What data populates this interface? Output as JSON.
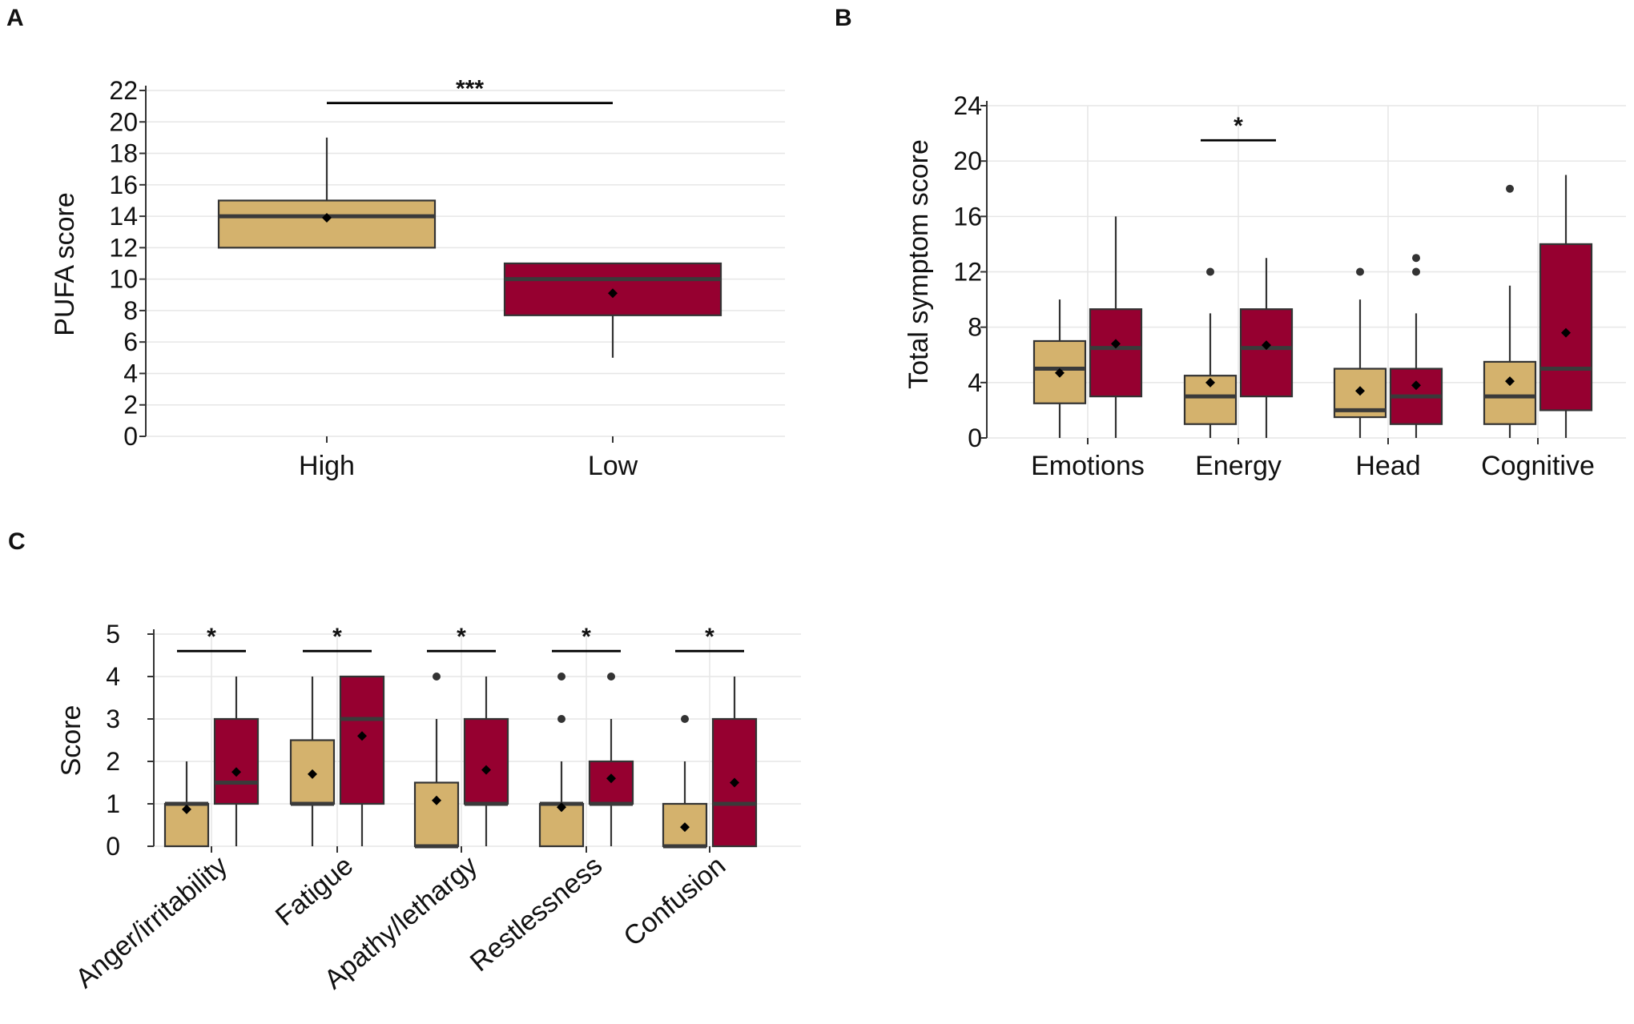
{
  "colors": {
    "high": "#d4b26d",
    "low": "#960030"
  },
  "chart_data": [
    {
      "type": "box",
      "panel": "A",
      "ylabel": "PUFA score",
      "ylim": [
        0,
        22
      ],
      "yticks": [
        0,
        2,
        4,
        6,
        8,
        10,
        12,
        14,
        16,
        18,
        20,
        22
      ],
      "categories": [
        "High",
        "Low"
      ],
      "groups": [
        {
          "category": "High",
          "series": "high",
          "whisker_low": 12,
          "q1": 12,
          "median": 14,
          "q3": 15,
          "whisker_high": 19,
          "mean": 13.9,
          "outliers": []
        },
        {
          "category": "Low",
          "series": "low",
          "whisker_low": 5,
          "q1": 7.7,
          "median": 10,
          "q3": 11,
          "whisker_high": 11,
          "mean": 9.1,
          "outliers": []
        }
      ],
      "significance": [
        {
          "from": "High",
          "to": "Low",
          "label": "***",
          "y": 21.2
        }
      ]
    },
    {
      "type": "box",
      "panel": "B",
      "ylabel": "Total symptom score",
      "ylim": [
        0,
        24
      ],
      "yticks": [
        0,
        4,
        8,
        12,
        16,
        20,
        24
      ],
      "categories": [
        "Emotions",
        "Energy",
        "Head",
        "Cognitive"
      ],
      "groups": [
        {
          "category": "Emotions",
          "series": "high",
          "whisker_low": 0,
          "q1": 2.5,
          "median": 5,
          "q3": 7,
          "whisker_high": 10,
          "mean": 4.7,
          "outliers": []
        },
        {
          "category": "Emotions",
          "series": "low",
          "whisker_low": 0,
          "q1": 3,
          "median": 6.5,
          "q3": 9.3,
          "whisker_high": 16,
          "mean": 6.8,
          "outliers": []
        },
        {
          "category": "Energy",
          "series": "high",
          "whisker_low": 0,
          "q1": 1,
          "median": 3,
          "q3": 4.5,
          "whisker_high": 9,
          "mean": 4,
          "outliers": [
            12
          ]
        },
        {
          "category": "Energy",
          "series": "low",
          "whisker_low": 0,
          "q1": 3,
          "median": 6.5,
          "q3": 9.3,
          "whisker_high": 13,
          "mean": 6.7,
          "outliers": []
        },
        {
          "category": "Head",
          "series": "high",
          "whisker_low": 0,
          "q1": 1.5,
          "median": 2,
          "q3": 5,
          "whisker_high": 10,
          "mean": 3.4,
          "outliers": [
            12
          ]
        },
        {
          "category": "Head",
          "series": "low",
          "whisker_low": 0,
          "q1": 1,
          "median": 3,
          "q3": 5,
          "whisker_high": 9,
          "mean": 3.8,
          "outliers": [
            12,
            13
          ]
        },
        {
          "category": "Cognitive",
          "series": "high",
          "whisker_low": 0,
          "q1": 1,
          "median": 3,
          "q3": 5.5,
          "whisker_high": 11,
          "mean": 4.1,
          "outliers": [
            18
          ]
        },
        {
          "category": "Cognitive",
          "series": "low",
          "whisker_low": 0,
          "q1": 2,
          "median": 5,
          "q3": 14,
          "whisker_high": 19,
          "mean": 7.6,
          "outliers": []
        }
      ],
      "significance": [
        {
          "category": "Energy",
          "label": "*",
          "y": 21.5
        }
      ]
    },
    {
      "type": "box",
      "panel": "C",
      "ylabel": "Score",
      "ylim": [
        0,
        5
      ],
      "yticks": [
        0,
        1,
        2,
        3,
        4,
        5
      ],
      "categories": [
        "Anger/irritability",
        "Fatigue",
        "Apathy/lethargy",
        "Restlessness",
        "Confusion"
      ],
      "groups": [
        {
          "category": "Anger/irritability",
          "series": "high",
          "whisker_low": 0,
          "q1": 0,
          "median": 1,
          "q3": 1,
          "whisker_high": 2,
          "mean": 0.87,
          "outliers": []
        },
        {
          "category": "Anger/irritability",
          "series": "low",
          "whisker_low": 0,
          "q1": 1,
          "median": 1.5,
          "q3": 3,
          "whisker_high": 4,
          "mean": 1.75,
          "outliers": []
        },
        {
          "category": "Fatigue",
          "series": "high",
          "whisker_low": 0,
          "q1": 1,
          "median": 1,
          "q3": 2.5,
          "whisker_high": 4,
          "mean": 1.7,
          "outliers": []
        },
        {
          "category": "Fatigue",
          "series": "low",
          "whisker_low": 0,
          "q1": 1,
          "median": 3,
          "q3": 4,
          "whisker_high": 4,
          "mean": 2.6,
          "outliers": []
        },
        {
          "category": "Apathy/lethargy",
          "series": "high",
          "whisker_low": 0,
          "q1": 0,
          "median": 0,
          "q3": 1.5,
          "whisker_high": 3,
          "mean": 1.08,
          "outliers": [
            4
          ]
        },
        {
          "category": "Apathy/lethargy",
          "series": "low",
          "whisker_low": 0,
          "q1": 1,
          "median": 1,
          "q3": 3,
          "whisker_high": 4,
          "mean": 1.8,
          "outliers": []
        },
        {
          "category": "Restlessness",
          "series": "high",
          "whisker_low": 0,
          "q1": 0,
          "median": 1,
          "q3": 1,
          "whisker_high": 2,
          "mean": 0.92,
          "outliers": [
            3,
            4
          ]
        },
        {
          "category": "Restlessness",
          "series": "low",
          "whisker_low": 0,
          "q1": 1,
          "median": 1,
          "q3": 2,
          "whisker_high": 3,
          "mean": 1.6,
          "outliers": [
            4
          ]
        },
        {
          "category": "Confusion",
          "series": "high",
          "whisker_low": 0,
          "q1": 0,
          "median": 0,
          "q3": 1,
          "whisker_high": 2,
          "mean": 0.45,
          "outliers": [
            3
          ]
        },
        {
          "category": "Confusion",
          "series": "low",
          "whisker_low": 0,
          "q1": 0,
          "median": 1,
          "q3": 3,
          "whisker_high": 4,
          "mean": 1.5,
          "outliers": []
        }
      ],
      "significance": [
        {
          "category": "Anger/irritability",
          "label": "*",
          "y": 4.6
        },
        {
          "category": "Fatigue",
          "label": "*",
          "y": 4.6
        },
        {
          "category": "Apathy/lethargy",
          "label": "*",
          "y": 4.6
        },
        {
          "category": "Restlessness",
          "label": "*",
          "y": 4.6
        },
        {
          "category": "Confusion",
          "label": "*",
          "y": 4.6
        }
      ]
    }
  ]
}
